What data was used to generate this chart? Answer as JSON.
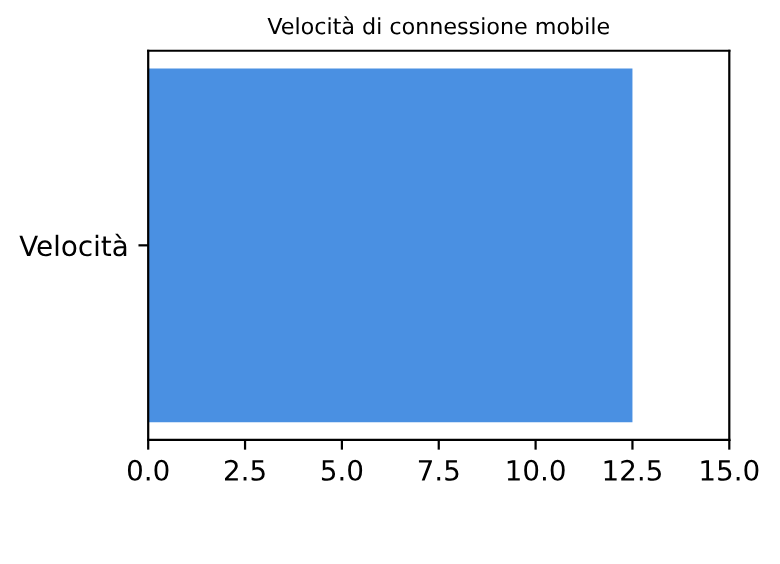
{
  "chart_data": {
    "type": "bar",
    "orientation": "horizontal",
    "title": "Velocità di connessione mobile",
    "categories": [
      "Velocità"
    ],
    "values": [
      12.5
    ],
    "color": "#4a90e2",
    "xlim": [
      0,
      15
    ],
    "xticks": [
      {
        "value": 0,
        "label": "0.0"
      },
      2.5,
      {
        "value": 5,
        "label": "5.0"
      },
      7.5,
      {
        "value": 10,
        "label": "10.0"
      },
      12.5,
      {
        "value": 15,
        "label": "15.0"
      }
    ],
    "grid": false
  }
}
